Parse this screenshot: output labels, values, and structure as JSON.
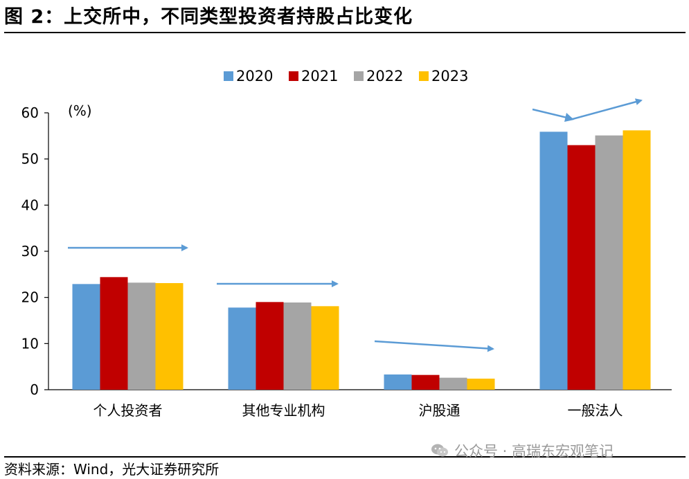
{
  "title": "图 2：上交所中，不同类型投资者持股占比变化",
  "source": "资料来源：Wind，光大证券研究所",
  "watermark": "公众号 · 高瑞东宏观笔记",
  "chart_data": {
    "type": "bar",
    "unit_label": "(%)",
    "categories": [
      "个人投资者",
      "其他专业机构",
      "沪股通",
      "一般法人"
    ],
    "series": [
      {
        "name": "2020",
        "color": "#5b9bd5",
        "values": [
          22.9,
          17.8,
          3.3,
          55.9
        ]
      },
      {
        "name": "2021",
        "color": "#c00000",
        "values": [
          24.4,
          19.0,
          3.2,
          53.0
        ]
      },
      {
        "name": "2022",
        "color": "#a5a5a5",
        "values": [
          23.2,
          18.9,
          2.6,
          55.1
        ]
      },
      {
        "name": "2023",
        "color": "#ffc000",
        "values": [
          23.1,
          18.1,
          2.4,
          56.2
        ]
      }
    ],
    "ylim": [
      0,
      60
    ],
    "yticks": [
      0,
      10,
      20,
      30,
      40,
      50,
      60
    ],
    "legend_position": "top",
    "grid": false,
    "trend_arrow_color": "#5b9bd5"
  }
}
